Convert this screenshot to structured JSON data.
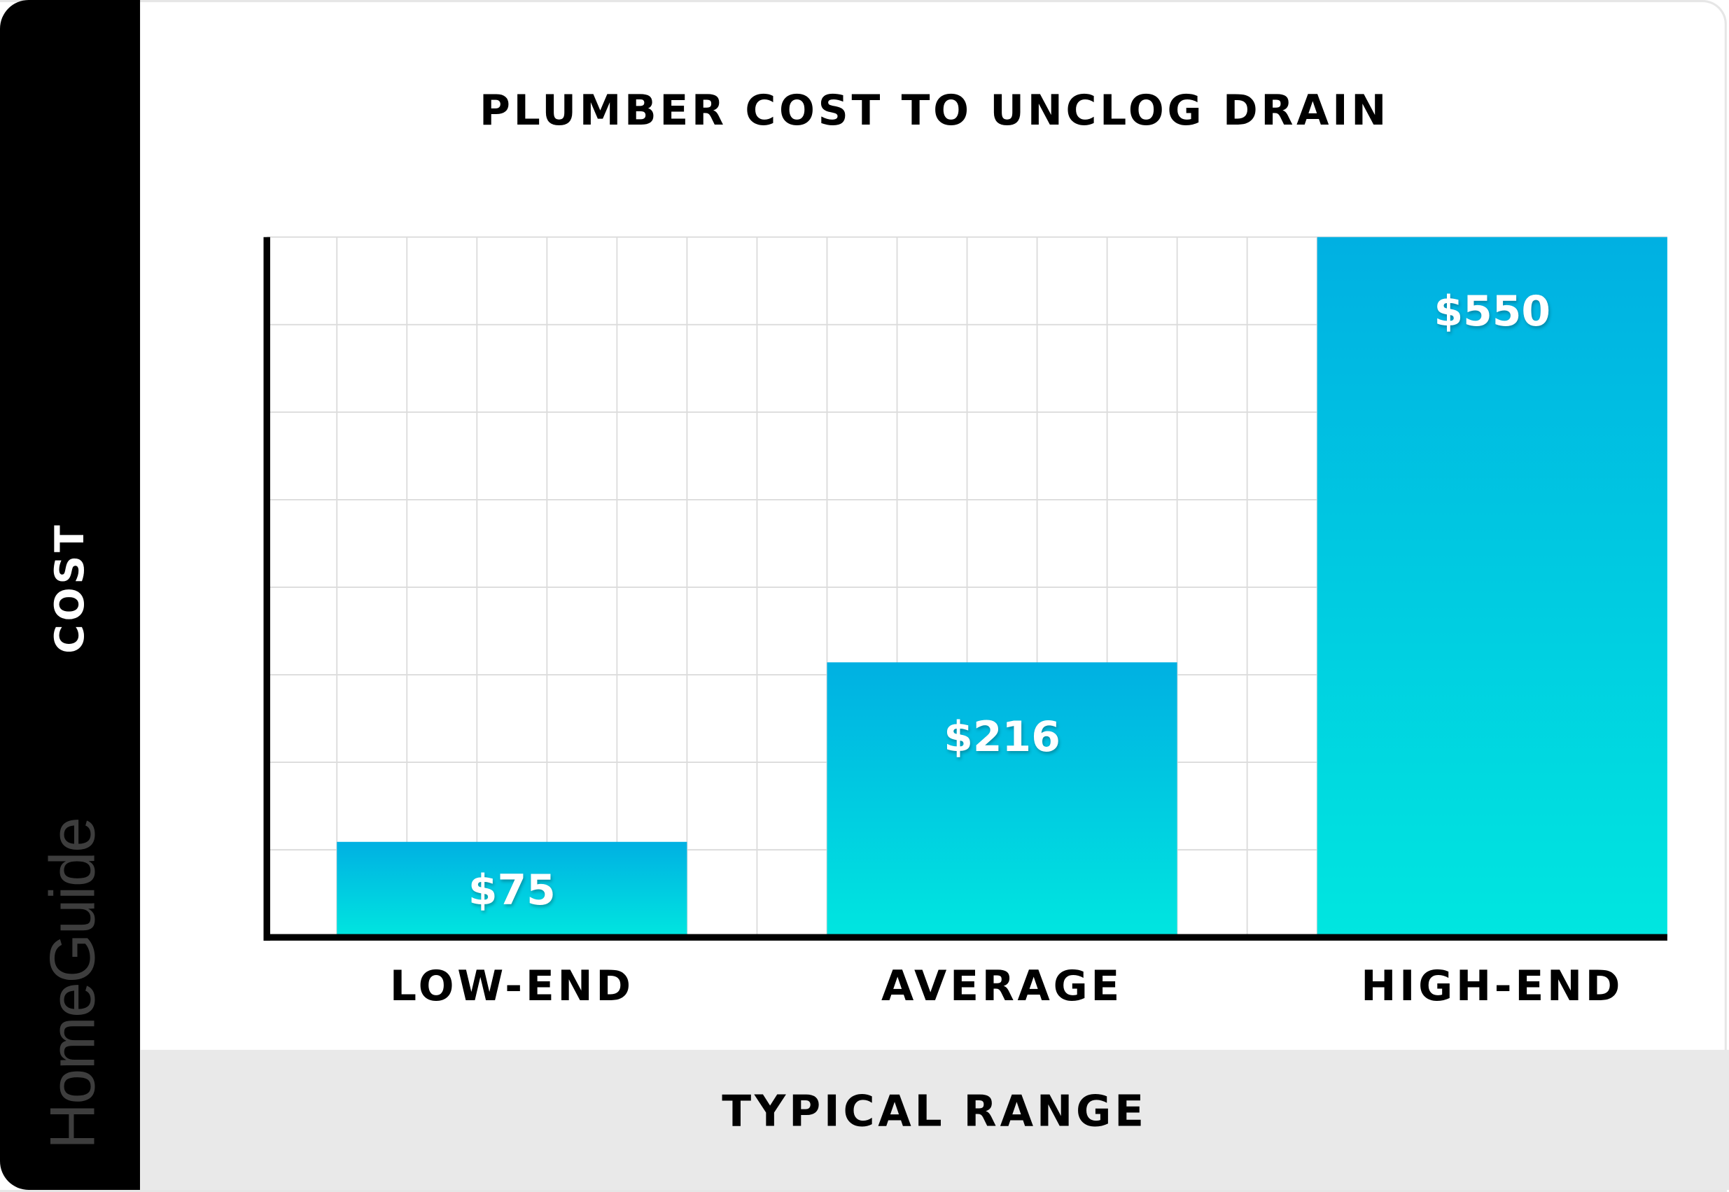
{
  "brand": {
    "logo_text": "HomeGuide"
  },
  "chart_data": {
    "type": "bar",
    "title": "PLUMBER COST TO UNCLOG DRAIN",
    "xlabel": "TYPICAL RANGE",
    "ylabel": "COST",
    "categories": [
      "LOW-END",
      "AVERAGE",
      "HIGH-END"
    ],
    "values": [
      75,
      216,
      550
    ],
    "data_labels": [
      "$75",
      "$216",
      "$550"
    ],
    "ylim": [
      0,
      550
    ],
    "grid": true,
    "legend": "none",
    "colors": {
      "bar_top": "#00b0e2",
      "bar_bottom": "#00e6e0",
      "sidebar": "#000000",
      "footer": "#e9e9e9",
      "grid": "#dcdcdc"
    }
  }
}
